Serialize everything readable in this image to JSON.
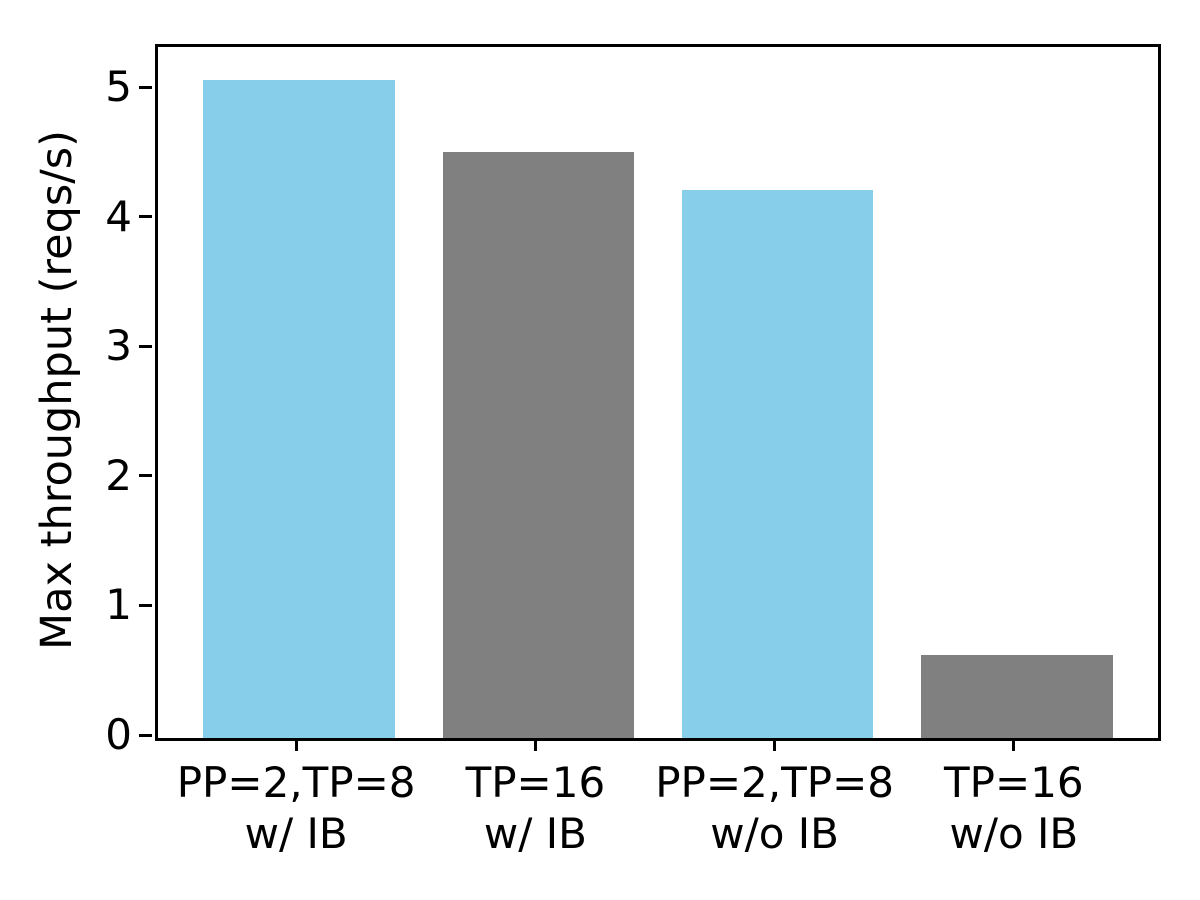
{
  "chart_data": {
    "type": "bar",
    "title": "",
    "xlabel": "",
    "ylabel": "Max throughput (reqs/s)",
    "categories": [
      {
        "line1": "PP=2,TP=8",
        "line2": "w/ IB"
      },
      {
        "line1": "TP=16",
        "line2": "w/ IB"
      },
      {
        "line1": "PP=2,TP=8",
        "line2": "w/o IB"
      },
      {
        "line1": "TP=16",
        "line2": "w/o IB"
      }
    ],
    "values": [
      5.08,
      4.52,
      4.23,
      0.64
    ],
    "bar_colors": [
      "#87CEEB",
      "#808080",
      "#87CEEB",
      "#808080"
    ],
    "yticks": [
      0,
      1,
      2,
      3,
      4,
      5
    ],
    "ylim": [
      0,
      5.334
    ],
    "xlim": [
      -0.59,
      3.59
    ],
    "bar_width_units": 0.8,
    "grid": false,
    "legend": null,
    "colors": {
      "blue_bar": "#87CEEB",
      "gray_bar": "#808080",
      "axis": "#000000",
      "background": "#ffffff",
      "text": "#000000"
    }
  }
}
